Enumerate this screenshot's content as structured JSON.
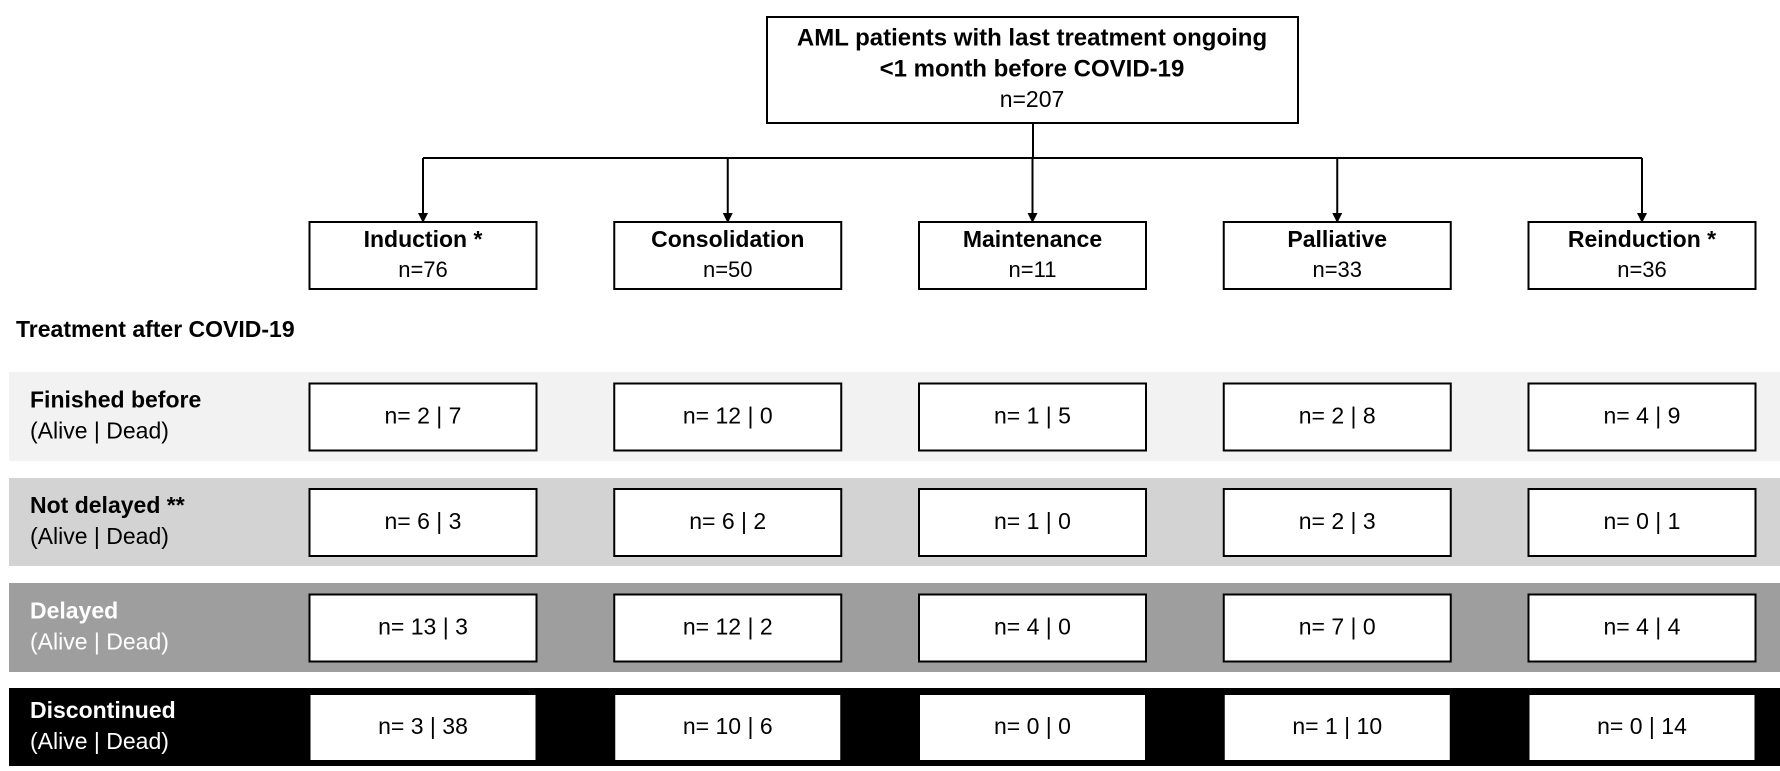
{
  "root": {
    "title_lines": [
      "AML patients with last treatment ongoing",
      "<1 month before COVID-19"
    ],
    "n": "n=207"
  },
  "groups": [
    {
      "label": "Induction *",
      "n": "n=76"
    },
    {
      "label": "Consolidation",
      "n": "n=50"
    },
    {
      "label": "Maintenance",
      "n": "n=11"
    },
    {
      "label": "Palliative",
      "n": "n=33"
    },
    {
      "label": "Reinduction *",
      "n": "n=36"
    }
  ],
  "section_title": "Treatment after COVID-19",
  "rows": [
    {
      "label": "Finished before",
      "sublabel": "(Alive | Dead)",
      "cells": [
        "n= 2 | 7",
        "n= 12 | 0",
        "n= 1 | 5",
        "n= 2 | 8",
        "n= 4 | 9"
      ]
    },
    {
      "label": "Not delayed **",
      "sublabel": "(Alive | Dead)",
      "cells": [
        "n= 6 | 3",
        "n= 6 | 2",
        "n= 1 | 0",
        "n= 2 | 3",
        "n= 0 | 1"
      ]
    },
    {
      "label": "Delayed",
      "sublabel": "(Alive | Dead)",
      "cells": [
        "n= 13 | 3",
        "n= 12 | 2",
        "n= 4 | 0",
        "n= 7 | 0",
        "n= 4 | 4"
      ]
    },
    {
      "label": "Discontinued",
      "sublabel": "(Alive | Dead)",
      "cells": [
        "n= 3 | 38",
        "n= 10 | 6",
        "n= 0 | 0",
        "n= 1 | 10",
        "n= 0 | 14"
      ]
    }
  ]
}
